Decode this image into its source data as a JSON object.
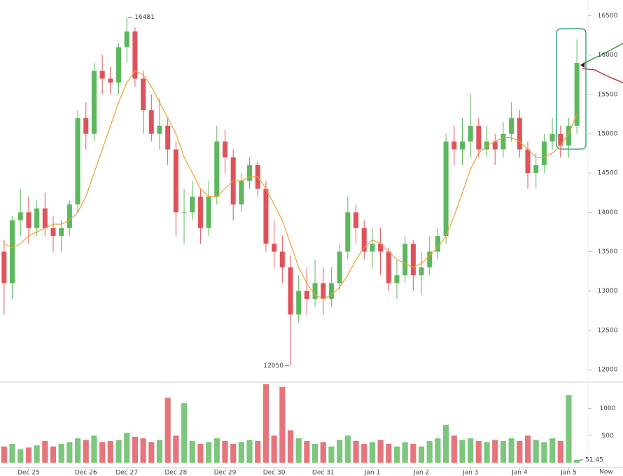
{
  "chart_data": {
    "type": "candlestick",
    "categories": [
      null,
      null,
      null,
      "Dec 25",
      null,
      null,
      null,
      null,
      null,
      null,
      "Dec 26",
      null,
      null,
      null,
      null,
      "Dec 27",
      null,
      null,
      null,
      null,
      null,
      "Dec 28",
      null,
      null,
      null,
      null,
      null,
      "Dec 29",
      null,
      null,
      null,
      null,
      null,
      "Dec 30",
      null,
      null,
      null,
      null,
      null,
      "Dec 31",
      null,
      null,
      null,
      null,
      null,
      "Jan 1",
      null,
      null,
      null,
      null,
      null,
      "Jan 2",
      null,
      null,
      null,
      null,
      null,
      "Jan 3",
      null,
      null,
      null,
      null,
      null,
      "Jan 4",
      null,
      null,
      null,
      null,
      null,
      "Jan 5",
      null
    ],
    "open": [
      13500,
      13100,
      13900,
      14000,
      13800,
      14050,
      13800,
      13700,
      13800,
      14100,
      15200,
      15000,
      15800,
      15700,
      15650,
      16100,
      16300,
      15700,
      15300,
      15000,
      15100,
      14800,
      14000,
      14000,
      14200,
      13800,
      14200,
      14900,
      14700,
      14100,
      14400,
      14600,
      14300,
      13600,
      13500,
      13300,
      12700,
      13000,
      12900,
      13100,
      12900,
      13100,
      13500,
      14000,
      13800,
      13500,
      13600,
      13500,
      13100,
      13200,
      13600,
      13200,
      13300,
      13500,
      13700,
      14900,
      14800,
      14900,
      15100,
      14800,
      14900,
      14800,
      15000,
      15200,
      14800,
      14500,
      14600,
      14900,
      15000,
      14850,
      15100
    ],
    "high": [
      13650,
      13950,
      14300,
      14200,
      14150,
      14250,
      13950,
      13900,
      14150,
      15300,
      15400,
      15900,
      16000,
      15850,
      16150,
      16481,
      16350,
      15800,
      15500,
      15450,
      15200,
      14900,
      14300,
      14400,
      14300,
      14400,
      15100,
      15050,
      14800,
      14500,
      14700,
      14650,
      14400,
      13900,
      13700,
      13450,
      13200,
      13300,
      13400,
      13300,
      13300,
      13600,
      14200,
      14100,
      13900,
      13800,
      13800,
      13550,
      13400,
      13700,
      13650,
      13500,
      13700,
      13800,
      15000,
      15100,
      15200,
      15500,
      15200,
      15100,
      15000,
      15150,
      15400,
      15300,
      14900,
      14750,
      15000,
      15200,
      15100,
      15200,
      16200
    ],
    "low": [
      12700,
      12900,
      13700,
      13600,
      13700,
      13700,
      13500,
      13500,
      13700,
      14000,
      14800,
      14900,
      15500,
      15500,
      15500,
      15900,
      15600,
      15000,
      14900,
      14800,
      14600,
      13700,
      13600,
      13900,
      13600,
      13700,
      14100,
      14500,
      13900,
      14000,
      14300,
      14200,
      13500,
      13300,
      13100,
      12050,
      12600,
      12700,
      12800,
      12700,
      12800,
      13000,
      13400,
      13600,
      13400,
      13300,
      13200,
      13000,
      12900,
      13100,
      13000,
      12950,
      13200,
      13400,
      13600,
      14600,
      14600,
      14700,
      14700,
      14700,
      14600,
      14700,
      14900,
      14700,
      14300,
      14300,
      14500,
      14800,
      14700,
      14700,
      15000
    ],
    "close": [
      13100,
      13900,
      14000,
      13800,
      14050,
      13800,
      13700,
      13800,
      14100,
      15200,
      15000,
      15800,
      15700,
      15650,
      16100,
      16300,
      15700,
      15300,
      15000,
      15100,
      14800,
      14000,
      14000,
      14200,
      13800,
      14200,
      14900,
      14700,
      14100,
      14400,
      14600,
      14300,
      13600,
      13500,
      13300,
      12700,
      13000,
      12900,
      13100,
      12900,
      13100,
      13500,
      14000,
      13800,
      13500,
      13600,
      13500,
      13100,
      13200,
      13600,
      13200,
      13300,
      13500,
      13700,
      14900,
      14800,
      14900,
      15100,
      14800,
      14900,
      14800,
      15000,
      15200,
      14800,
      14500,
      14600,
      14900,
      15000,
      14850,
      15100,
      15900
    ],
    "ma": [
      13600,
      13550,
      13600,
      13700,
      13750,
      13800,
      13850,
      13850,
      13900,
      14000,
      14200,
      14500,
      14800,
      15100,
      15400,
      15650,
      15800,
      15750,
      15600,
      15400,
      15200,
      15000,
      14700,
      14500,
      14300,
      14200,
      14200,
      14300,
      14400,
      14400,
      14450,
      14450,
      14300,
      14100,
      13900,
      13600,
      13300,
      13100,
      12950,
      12900,
      12950,
      13050,
      13200,
      13400,
      13550,
      13650,
      13600,
      13500,
      13400,
      13350,
      13300,
      13350,
      13450,
      13550,
      13700,
      13950,
      14250,
      14550,
      14750,
      14850,
      14900,
      14950,
      14950,
      14900,
      14800,
      14700,
      14700,
      14750,
      14850,
      15000,
      15250
    ],
    "volume": [
      300,
      350,
      250,
      280,
      320,
      400,
      300,
      350,
      380,
      450,
      420,
      500,
      380,
      400,
      420,
      550,
      480,
      450,
      380,
      420,
      1200,
      500,
      1100,
      400,
      350,
      380,
      450,
      400,
      350,
      380,
      420,
      400,
      1450,
      500,
      1400,
      600,
      450,
      400,
      350,
      380,
      300,
      420,
      500,
      400,
      350,
      380,
      420,
      350,
      300,
      380,
      350,
      300,
      400,
      450,
      700,
      500,
      420,
      450,
      400,
      380,
      420,
      400,
      450,
      400,
      500,
      420,
      380,
      450,
      400,
      1250,
      51.45
    ],
    "up_color": "#5cb85c",
    "down_color": "#e0525a",
    "ma_color": "#f0a030",
    "ylim": [
      11840,
      16700
    ],
    "yticks": [
      12000,
      12500,
      13000,
      13500,
      14000,
      14500,
      15000,
      15500,
      16000,
      16500
    ],
    "y2lim": [
      0,
      1460
    ],
    "y2ticks": [
      500,
      1000
    ],
    "high_label": 16481,
    "high_index": 15,
    "low_label": 12050,
    "low_index": 35,
    "last_volume_label": 51.45,
    "now_label": "Now"
  }
}
